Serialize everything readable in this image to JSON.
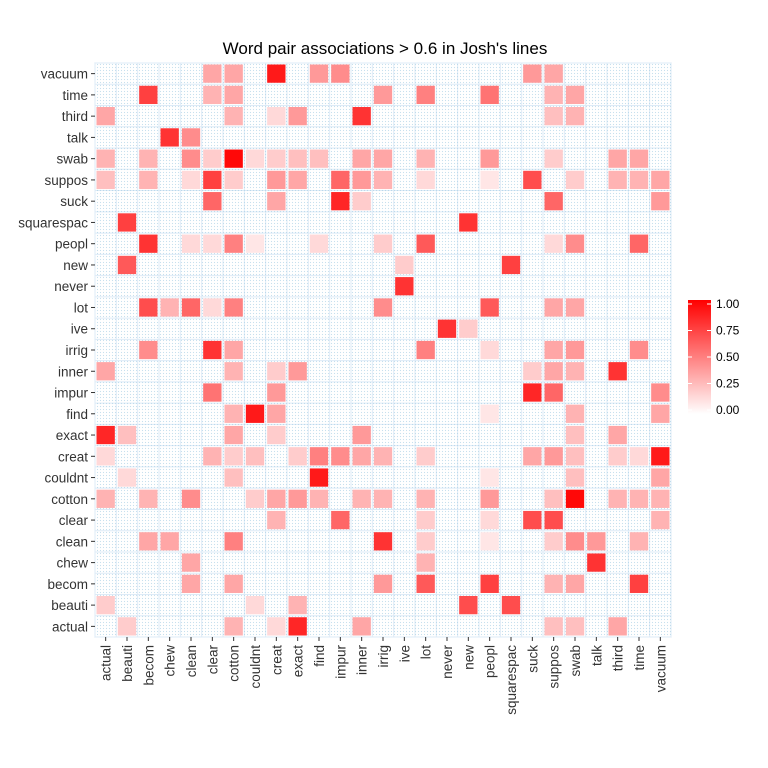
{
  "chart_data": {
    "type": "heatmap",
    "title": "Word pair associations > 0.6 in Josh's lines",
    "xlabel": "",
    "ylabel": "",
    "terms": [
      "actual",
      "beauti",
      "becom",
      "chew",
      "clean",
      "clear",
      "cotton",
      "couldnt",
      "creat",
      "exact",
      "find",
      "impur",
      "inner",
      "irrig",
      "ive",
      "lot",
      "never",
      "new",
      "peopl",
      "squarespac",
      "suck",
      "suppos",
      "swab",
      "talk",
      "third",
      "time",
      "vacuum"
    ],
    "value_range": [
      0,
      1
    ],
    "legend": {
      "ticks": [
        "0.00",
        "0.25",
        "0.50",
        "0.75",
        "1.00"
      ],
      "position": "right"
    },
    "grid": true,
    "colors": {
      "low": "#ffffff",
      "high": "#ff0000",
      "grid": "#deebf7",
      "panel_border": "#cfe0f0",
      "dots": "#9ecae1"
    },
    "cells": [
      [
        "vacuum",
        "clear",
        0.35
      ],
      [
        "vacuum",
        "cotton",
        0.35
      ],
      [
        "vacuum",
        "creat",
        0.9
      ],
      [
        "vacuum",
        "find",
        0.4
      ],
      [
        "vacuum",
        "impur",
        0.45
      ],
      [
        "vacuum",
        "suck",
        0.4
      ],
      [
        "vacuum",
        "suppos",
        0.35
      ],
      [
        "time",
        "becom",
        0.75
      ],
      [
        "time",
        "clear",
        0.3
      ],
      [
        "time",
        "cotton",
        0.35
      ],
      [
        "time",
        "irrig",
        0.4
      ],
      [
        "time",
        "lot",
        0.5
      ],
      [
        "time",
        "peopl",
        0.55
      ],
      [
        "time",
        "suppos",
        0.3
      ],
      [
        "time",
        "swab",
        0.35
      ],
      [
        "third",
        "actual",
        0.35
      ],
      [
        "third",
        "cotton",
        0.3
      ],
      [
        "third",
        "creat",
        0.15
      ],
      [
        "third",
        "exact",
        0.4
      ],
      [
        "third",
        "inner",
        0.8
      ],
      [
        "third",
        "suppos",
        0.25
      ],
      [
        "third",
        "swab",
        0.3
      ],
      [
        "talk",
        "chew",
        0.8
      ],
      [
        "talk",
        "clean",
        0.45
      ],
      [
        "swab",
        "actual",
        0.3
      ],
      [
        "swab",
        "becom",
        0.3
      ],
      [
        "swab",
        "clean",
        0.45
      ],
      [
        "swab",
        "clear",
        0.2
      ],
      [
        "swab",
        "cotton",
        0.97
      ],
      [
        "swab",
        "couldnt",
        0.15
      ],
      [
        "swab",
        "creat",
        0.2
      ],
      [
        "swab",
        "exact",
        0.25
      ],
      [
        "swab",
        "find",
        0.25
      ],
      [
        "swab",
        "inner",
        0.35
      ],
      [
        "swab",
        "irrig",
        0.35
      ],
      [
        "swab",
        "lot",
        0.3
      ],
      [
        "swab",
        "peopl",
        0.4
      ],
      [
        "swab",
        "suppos",
        0.2
      ],
      [
        "swab",
        "third",
        0.35
      ],
      [
        "swab",
        "time",
        0.35
      ],
      [
        "suppos",
        "actual",
        0.25
      ],
      [
        "suppos",
        "becom",
        0.3
      ],
      [
        "suppos",
        "clean",
        0.15
      ],
      [
        "suppos",
        "clear",
        0.75
      ],
      [
        "suppos",
        "cotton",
        0.2
      ],
      [
        "suppos",
        "creat",
        0.4
      ],
      [
        "suppos",
        "exact",
        0.35
      ],
      [
        "suppos",
        "impur",
        0.6
      ],
      [
        "suppos",
        "inner",
        0.4
      ],
      [
        "suppos",
        "irrig",
        0.3
      ],
      [
        "suppos",
        "lot",
        0.15
      ],
      [
        "suppos",
        "peopl",
        0.1
      ],
      [
        "suppos",
        "suck",
        0.7
      ],
      [
        "suppos",
        "swab",
        0.2
      ],
      [
        "suppos",
        "third",
        0.3
      ],
      [
        "suppos",
        "time",
        0.3
      ],
      [
        "suppos",
        "vacuum",
        0.35
      ],
      [
        "suck",
        "clear",
        0.6
      ],
      [
        "suck",
        "creat",
        0.35
      ],
      [
        "suck",
        "impur",
        0.85
      ],
      [
        "suck",
        "inner",
        0.2
      ],
      [
        "suck",
        "suppos",
        0.6
      ],
      [
        "suck",
        "vacuum",
        0.4
      ],
      [
        "squarespac",
        "beauti",
        0.75
      ],
      [
        "squarespac",
        "new",
        0.8
      ],
      [
        "peopl",
        "becom",
        0.8
      ],
      [
        "peopl",
        "clean",
        0.15
      ],
      [
        "peopl",
        "clear",
        0.15
      ],
      [
        "peopl",
        "cotton",
        0.5
      ],
      [
        "peopl",
        "couldnt",
        0.1
      ],
      [
        "peopl",
        "find",
        0.15
      ],
      [
        "peopl",
        "irrig",
        0.2
      ],
      [
        "peopl",
        "lot",
        0.65
      ],
      [
        "peopl",
        "suppos",
        0.15
      ],
      [
        "peopl",
        "swab",
        0.45
      ],
      [
        "peopl",
        "time",
        0.6
      ],
      [
        "new",
        "beauti",
        0.65
      ],
      [
        "new",
        "ive",
        0.2
      ],
      [
        "new",
        "squarespac",
        0.75
      ],
      [
        "never",
        "ive",
        0.8
      ],
      [
        "lot",
        "becom",
        0.7
      ],
      [
        "lot",
        "chew",
        0.3
      ],
      [
        "lot",
        "clean",
        0.6
      ],
      [
        "lot",
        "clear",
        0.15
      ],
      [
        "lot",
        "cotton",
        0.5
      ],
      [
        "lot",
        "irrig",
        0.45
      ],
      [
        "lot",
        "peopl",
        0.65
      ],
      [
        "lot",
        "suppos",
        0.35
      ],
      [
        "lot",
        "swab",
        0.35
      ],
      [
        "ive",
        "never",
        0.8
      ],
      [
        "ive",
        "new",
        0.2
      ],
      [
        "irrig",
        "becom",
        0.45
      ],
      [
        "irrig",
        "clear",
        0.8
      ],
      [
        "irrig",
        "cotton",
        0.35
      ],
      [
        "irrig",
        "lot",
        0.5
      ],
      [
        "irrig",
        "peopl",
        0.15
      ],
      [
        "irrig",
        "suppos",
        0.35
      ],
      [
        "irrig",
        "swab",
        0.4
      ],
      [
        "irrig",
        "time",
        0.45
      ],
      [
        "inner",
        "actual",
        0.35
      ],
      [
        "inner",
        "cotton",
        0.3
      ],
      [
        "inner",
        "creat",
        0.2
      ],
      [
        "inner",
        "exact",
        0.4
      ],
      [
        "inner",
        "suck",
        0.2
      ],
      [
        "inner",
        "suppos",
        0.35
      ],
      [
        "inner",
        "swab",
        0.3
      ],
      [
        "inner",
        "third",
        0.8
      ],
      [
        "impur",
        "clear",
        0.55
      ],
      [
        "impur",
        "creat",
        0.4
      ],
      [
        "impur",
        "suck",
        0.85
      ],
      [
        "impur",
        "suppos",
        0.6
      ],
      [
        "impur",
        "vacuum",
        0.45
      ],
      [
        "find",
        "cotton",
        0.3
      ],
      [
        "find",
        "couldnt",
        0.9
      ],
      [
        "find",
        "creat",
        0.35
      ],
      [
        "find",
        "peopl",
        0.1
      ],
      [
        "find",
        "swab",
        0.3
      ],
      [
        "find",
        "vacuum",
        0.35
      ],
      [
        "exact",
        "actual",
        0.85
      ],
      [
        "exact",
        "beauti",
        0.25
      ],
      [
        "exact",
        "cotton",
        0.35
      ],
      [
        "exact",
        "creat",
        0.2
      ],
      [
        "exact",
        "inner",
        0.4
      ],
      [
        "exact",
        "swab",
        0.25
      ],
      [
        "exact",
        "third",
        0.35
      ],
      [
        "creat",
        "actual",
        0.15
      ],
      [
        "creat",
        "clear",
        0.3
      ],
      [
        "creat",
        "cotton",
        0.2
      ],
      [
        "creat",
        "couldnt",
        0.25
      ],
      [
        "creat",
        "exact",
        0.2
      ],
      [
        "creat",
        "find",
        0.5
      ],
      [
        "creat",
        "impur",
        0.45
      ],
      [
        "creat",
        "inner",
        0.35
      ],
      [
        "creat",
        "irrig",
        0.3
      ],
      [
        "creat",
        "lot",
        0.2
      ],
      [
        "creat",
        "suck",
        0.35
      ],
      [
        "creat",
        "suppos",
        0.4
      ],
      [
        "creat",
        "swab",
        0.25
      ],
      [
        "creat",
        "third",
        0.2
      ],
      [
        "creat",
        "time",
        0.15
      ],
      [
        "creat",
        "vacuum",
        0.9
      ],
      [
        "couldnt",
        "beauti",
        0.15
      ],
      [
        "couldnt",
        "cotton",
        0.25
      ],
      [
        "couldnt",
        "find",
        0.9
      ],
      [
        "couldnt",
        "peopl",
        0.1
      ],
      [
        "couldnt",
        "swab",
        0.25
      ],
      [
        "couldnt",
        "vacuum",
        0.35
      ],
      [
        "cotton",
        "actual",
        0.3
      ],
      [
        "cotton",
        "becom",
        0.3
      ],
      [
        "cotton",
        "clean",
        0.45
      ],
      [
        "cotton",
        "couldnt",
        0.2
      ],
      [
        "cotton",
        "creat",
        0.35
      ],
      [
        "cotton",
        "exact",
        0.4
      ],
      [
        "cotton",
        "find",
        0.3
      ],
      [
        "cotton",
        "inner",
        0.3
      ],
      [
        "cotton",
        "irrig",
        0.3
      ],
      [
        "cotton",
        "lot",
        0.3
      ],
      [
        "cotton",
        "peopl",
        0.4
      ],
      [
        "cotton",
        "suppos",
        0.25
      ],
      [
        "cotton",
        "swab",
        0.97
      ],
      [
        "cotton",
        "third",
        0.3
      ],
      [
        "cotton",
        "time",
        0.3
      ],
      [
        "cotton",
        "vacuum",
        0.3
      ],
      [
        "clear",
        "creat",
        0.3
      ],
      [
        "clear",
        "impur",
        0.6
      ],
      [
        "clear",
        "lot",
        0.2
      ],
      [
        "clear",
        "peopl",
        0.15
      ],
      [
        "clear",
        "suck",
        0.7
      ],
      [
        "clear",
        "suppos",
        0.7
      ],
      [
        "clear",
        "vacuum",
        0.3
      ],
      [
        "clean",
        "becom",
        0.35
      ],
      [
        "clean",
        "chew",
        0.35
      ],
      [
        "clean",
        "cotton",
        0.5
      ],
      [
        "clean",
        "irrig",
        0.8
      ],
      [
        "clean",
        "lot",
        0.2
      ],
      [
        "clean",
        "peopl",
        0.1
      ],
      [
        "clean",
        "suppos",
        0.2
      ],
      [
        "clean",
        "swab",
        0.45
      ],
      [
        "clean",
        "talk",
        0.4
      ],
      [
        "clean",
        "time",
        0.3
      ],
      [
        "chew",
        "clean",
        0.35
      ],
      [
        "chew",
        "lot",
        0.3
      ],
      [
        "chew",
        "talk",
        0.8
      ],
      [
        "becom",
        "clean",
        0.35
      ],
      [
        "becom",
        "cotton",
        0.35
      ],
      [
        "becom",
        "irrig",
        0.4
      ],
      [
        "becom",
        "lot",
        0.65
      ],
      [
        "becom",
        "peopl",
        0.75
      ],
      [
        "becom",
        "suppos",
        0.3
      ],
      [
        "becom",
        "swab",
        0.35
      ],
      [
        "becom",
        "time",
        0.75
      ],
      [
        "beauti",
        "actual",
        0.2
      ],
      [
        "beauti",
        "couldnt",
        0.15
      ],
      [
        "beauti",
        "exact",
        0.3
      ],
      [
        "beauti",
        "new",
        0.7
      ],
      [
        "beauti",
        "squarespac",
        0.7
      ],
      [
        "actual",
        "beauti",
        0.2
      ],
      [
        "actual",
        "cotton",
        0.3
      ],
      [
        "actual",
        "creat",
        0.15
      ],
      [
        "actual",
        "exact",
        0.85
      ],
      [
        "actual",
        "inner",
        0.35
      ],
      [
        "actual",
        "suppos",
        0.25
      ],
      [
        "actual",
        "swab",
        0.25
      ],
      [
        "actual",
        "third",
        0.35
      ]
    ]
  }
}
